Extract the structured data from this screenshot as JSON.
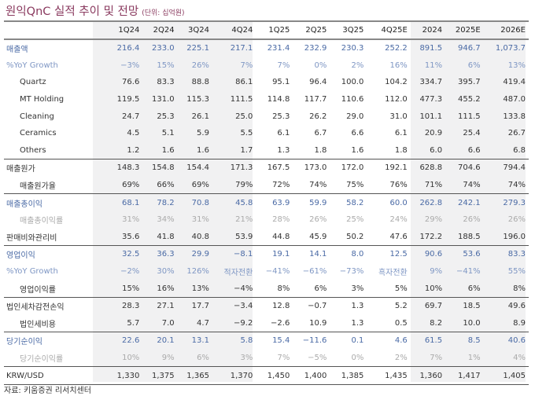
{
  "title": "원익QnC 실적 추이 및 전망",
  "unit": "(단위: 십억원)",
  "columns": [
    "1Q24",
    "2Q24",
    "3Q24",
    "4Q24",
    "1Q25",
    "2Q25",
    "3Q25",
    "4Q25E",
    "2024",
    "2025E",
    "2026E"
  ],
  "rows": [
    {
      "label": "매출액",
      "style": "main",
      "values": [
        "216.4",
        "233.0",
        "225.1",
        "217.1",
        "231.4",
        "232.9",
        "230.3",
        "252.2",
        "891.5",
        "946.7",
        "1,073.7"
      ]
    },
    {
      "label": "%YoY Growth",
      "style": "growth",
      "values": [
        "−3%",
        "15%",
        "26%",
        "7%",
        "7%",
        "0%",
        "2%",
        "16%",
        "11%",
        "6%",
        "13%"
      ]
    },
    {
      "label": "Quartz",
      "style": "indent",
      "values": [
        "76.6",
        "83.3",
        "88.8",
        "86.1",
        "95.1",
        "96.4",
        "100.0",
        "104.2",
        "334.7",
        "395.7",
        "419.4"
      ]
    },
    {
      "label": "MT Holding",
      "style": "indent",
      "values": [
        "119.5",
        "131.0",
        "115.3",
        "111.5",
        "114.8",
        "117.7",
        "110.6",
        "112.0",
        "477.3",
        "455.2",
        "487.0"
      ]
    },
    {
      "label": "Cleaning",
      "style": "indent",
      "values": [
        "24.7",
        "25.3",
        "26.1",
        "25.0",
        "25.3",
        "26.2",
        "29.0",
        "31.0",
        "101.1",
        "111.5",
        "133.8"
      ]
    },
    {
      "label": "Ceramics",
      "style": "indent",
      "values": [
        "4.5",
        "5.1",
        "5.9",
        "5.5",
        "6.1",
        "6.7",
        "6.6",
        "6.1",
        "20.9",
        "25.4",
        "26.7"
      ]
    },
    {
      "label": "Others",
      "style": "indent",
      "values": [
        "1.2",
        "1.6",
        "1.6",
        "1.7",
        "1.3",
        "1.8",
        "1.6",
        "1.8",
        "6.0",
        "6.6",
        "6.8"
      ]
    },
    {
      "label": "매출원가",
      "style": "plain",
      "sep": true,
      "values": [
        "148.3",
        "154.8",
        "154.4",
        "171.3",
        "167.5",
        "173.0",
        "172.0",
        "192.1",
        "628.8",
        "704.6",
        "794.4"
      ]
    },
    {
      "label": "매출원가율",
      "style": "indent",
      "values": [
        "69%",
        "66%",
        "69%",
        "79%",
        "72%",
        "74%",
        "75%",
        "76%",
        "71%",
        "74%",
        "74%"
      ]
    },
    {
      "label": "매출총이익",
      "style": "main",
      "sep": true,
      "values": [
        "68.1",
        "78.2",
        "70.8",
        "45.8",
        "63.9",
        "59.9",
        "58.2",
        "60.0",
        "262.8",
        "242.1",
        "279.3"
      ]
    },
    {
      "label": "매출총이익률",
      "style": "margin",
      "values": [
        "31%",
        "34%",
        "31%",
        "21%",
        "28%",
        "26%",
        "25%",
        "24%",
        "29%",
        "26%",
        "26%"
      ]
    },
    {
      "label": "판매비와관리비",
      "style": "plain",
      "values": [
        "35.6",
        "41.8",
        "40.8",
        "53.9",
        "44.8",
        "45.9",
        "50.2",
        "47.6",
        "172.2",
        "188.5",
        "196.0"
      ]
    },
    {
      "label": "영업이익",
      "style": "main",
      "sep": true,
      "values": [
        "32.5",
        "36.3",
        "29.9",
        "−8.1",
        "19.1",
        "14.1",
        "8.0",
        "12.5",
        "90.6",
        "53.6",
        "83.3"
      ]
    },
    {
      "label": "%YoY Growth",
      "style": "growth",
      "values": [
        "−2%",
        "30%",
        "126%",
        "적자전환",
        "−41%",
        "−61%",
        "−73%",
        "흑자전환",
        "9%",
        "−41%",
        "55%"
      ]
    },
    {
      "label": "영업이익률",
      "style": "indent",
      "values": [
        "15%",
        "16%",
        "13%",
        "−4%",
        "8%",
        "6%",
        "3%",
        "5%",
        "10%",
        "6%",
        "8%"
      ]
    },
    {
      "label": "법인세차감전손익",
      "style": "plain",
      "sep": true,
      "values": [
        "28.3",
        "27.1",
        "17.7",
        "−3.4",
        "12.8",
        "−0.7",
        "1.3",
        "5.2",
        "69.7",
        "18.5",
        "49.6"
      ]
    },
    {
      "label": "법인세비용",
      "style": "indent",
      "values": [
        "5.7",
        "7.0",
        "4.7",
        "−9.2",
        "−2.6",
        "10.9",
        "1.3",
        "0.5",
        "8.2",
        "10.0",
        "8.9"
      ]
    },
    {
      "label": "당기순이익",
      "style": "main",
      "sep": true,
      "values": [
        "22.6",
        "20.1",
        "13.1",
        "5.8",
        "15.4",
        "−11.6",
        "0.1",
        "4.6",
        "61.5",
        "8.5",
        "40.6"
      ]
    },
    {
      "label": "당기순이익률",
      "style": "margin",
      "values": [
        "10%",
        "9%",
        "6%",
        "3%",
        "7%",
        "−5%",
        "0%",
        "2%",
        "7%",
        "1%",
        "4%"
      ]
    },
    {
      "label": "KRW/USD",
      "style": "plain",
      "sep": true,
      "last": true,
      "values": [
        "1,330",
        "1,375",
        "1,365",
        "1,370",
        "1,450",
        "1,400",
        "1,385",
        "1,435",
        "1,360",
        "1,417",
        "1,405"
      ]
    }
  ],
  "source": "자료: 키움증권 리서치센터",
  "colors": {
    "title": "#8a3a5f",
    "main": "#4a6aa5",
    "growth": "#7f97c4",
    "margin": "#aaaaaa",
    "shade": "#f1f1f2"
  }
}
